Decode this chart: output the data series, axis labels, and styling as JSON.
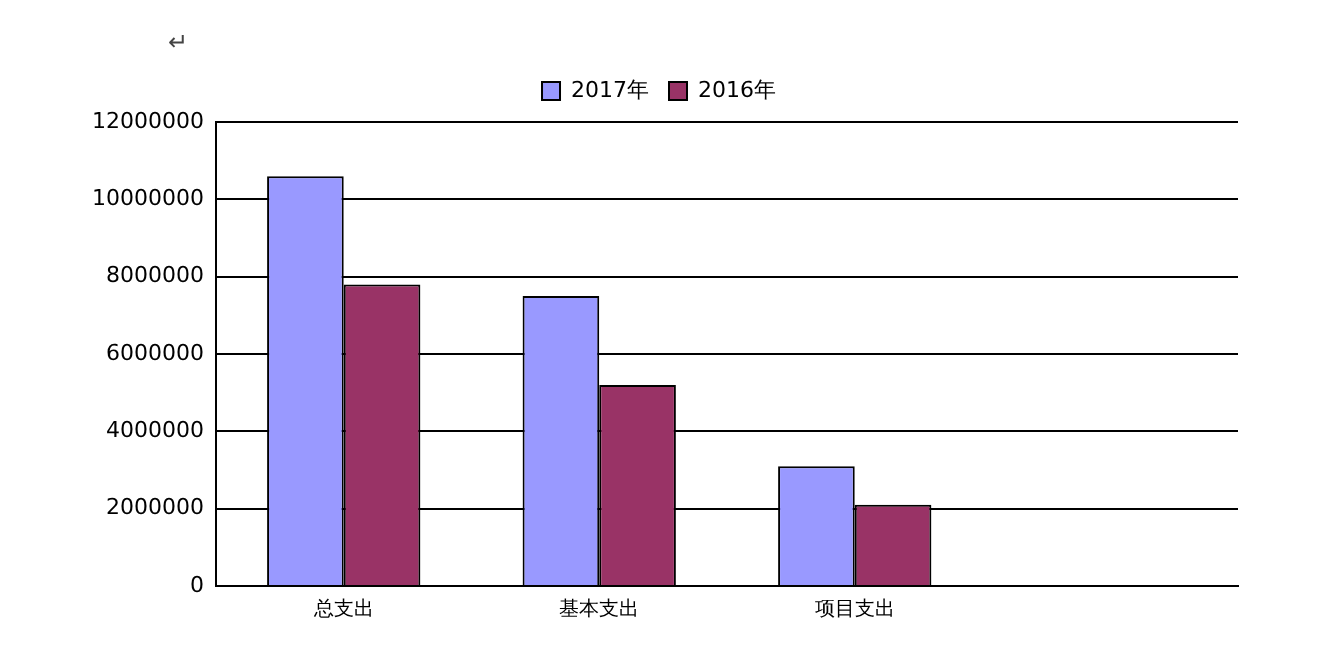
{
  "chart_data": {
    "type": "bar",
    "categories": [
      "总支出",
      "基本支出",
      "项目支出",
      null
    ],
    "series": [
      {
        "name": "2017年",
        "color": "#9999ff",
        "values": [
          10600000,
          7500000,
          3100000,
          null
        ]
      },
      {
        "name": "2016年",
        "color": "#993366",
        "values": [
          7800000,
          5200000,
          2100000,
          null
        ]
      }
    ],
    "ylim": [
      0,
      12000000
    ],
    "yticks": [
      0,
      2000000,
      4000000,
      6000000,
      8000000,
      10000000,
      12000000
    ],
    "grid": "y",
    "legend": "top",
    "annotations": [
      "↵"
    ]
  }
}
